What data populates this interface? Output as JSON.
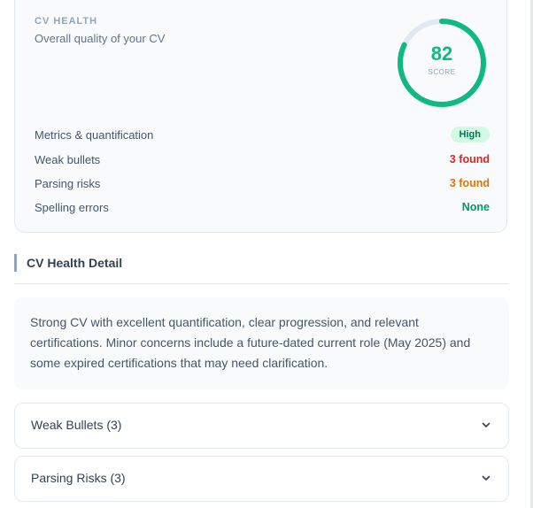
{
  "health": {
    "eyebrow": "CV HEALTH",
    "subtitle": "Overall quality of your CV",
    "score": "82",
    "score_value": 82,
    "score_max": 100,
    "score_label": "SCORE",
    "ring_color": "#10b981",
    "metrics": [
      {
        "label": "Metrics & quantification",
        "value": "High",
        "type": "badge"
      },
      {
        "label": "Weak bullets",
        "value": "3 found",
        "color": "#dc2626"
      },
      {
        "label": "Parsing risks",
        "value": "3 found",
        "color": "#d97706"
      },
      {
        "label": "Spelling errors",
        "value": "None",
        "color": "#059669"
      }
    ]
  },
  "detail": {
    "title": "CV Health Detail",
    "summary": "Strong CV with excellent quantification, clear progression, and relevant certifications. Minor concerns include a future-dated current role (May 2025) and some expired certifications that may need clarification."
  },
  "accordions": [
    {
      "title": "Weak Bullets (3)",
      "icon": "chevron-down-icon"
    },
    {
      "title": "Parsing Risks (3)",
      "icon": "chevron-down-icon"
    }
  ]
}
